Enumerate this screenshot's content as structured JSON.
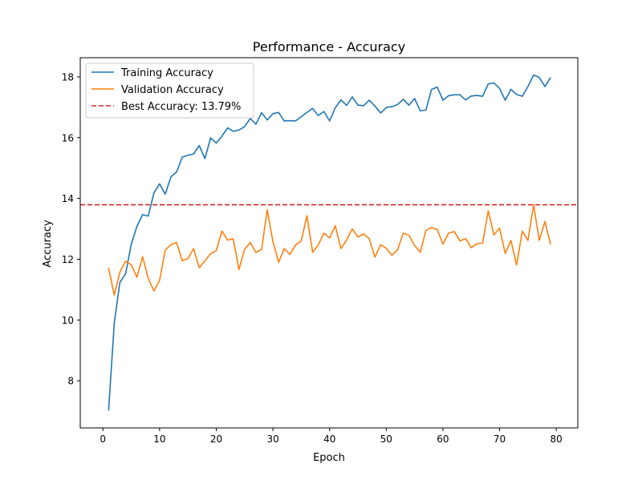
{
  "chart_data": {
    "type": "line",
    "title": "Performance - Accuracy",
    "xlabel": "Epoch",
    "ylabel": "Accuracy",
    "xlim": [
      -4,
      83.8
    ],
    "ylim": [
      6.45,
      18.63
    ],
    "xticks": [
      0,
      10,
      20,
      30,
      40,
      50,
      60,
      70,
      80
    ],
    "yticks": [
      8,
      10,
      12,
      14,
      16,
      18
    ],
    "grid": false,
    "legend_placement": "upper-left",
    "x": [
      1,
      2,
      3,
      4,
      5,
      6,
      7,
      8,
      9,
      10,
      11,
      12,
      13,
      14,
      15,
      16,
      17,
      18,
      19,
      20,
      21,
      22,
      23,
      24,
      25,
      26,
      27,
      28,
      29,
      30,
      31,
      32,
      33,
      34,
      35,
      36,
      37,
      38,
      39,
      40,
      41,
      42,
      43,
      44,
      45,
      46,
      47,
      48,
      49,
      50,
      51,
      52,
      53,
      54,
      55,
      56,
      57,
      58,
      59,
      60,
      61,
      62,
      63,
      64,
      65,
      66,
      67,
      68,
      69,
      70,
      71,
      72,
      73,
      74,
      75,
      76,
      77,
      78,
      79
    ],
    "series": [
      {
        "name": "Training Accuracy",
        "color": "#1f77b4",
        "values": [
          7.02,
          9.9,
          11.24,
          11.52,
          12.49,
          13.08,
          13.47,
          13.42,
          14.18,
          14.48,
          14.14,
          14.71,
          14.87,
          15.36,
          15.42,
          15.46,
          15.74,
          15.31,
          15.99,
          15.82,
          16.05,
          16.32,
          16.21,
          16.25,
          16.36,
          16.63,
          16.44,
          16.82,
          16.58,
          16.79,
          16.83,
          16.55,
          16.56,
          16.55,
          16.69,
          16.83,
          16.96,
          16.73,
          16.86,
          16.55,
          16.98,
          17.24,
          17.06,
          17.34,
          17.07,
          17.05,
          17.23,
          17.04,
          16.81,
          16.99,
          17.02,
          17.09,
          17.26,
          17.07,
          17.29,
          16.88,
          16.91,
          17.59,
          17.66,
          17.23,
          17.38,
          17.41,
          17.41,
          17.24,
          17.37,
          17.39,
          17.36,
          17.77,
          17.8,
          17.62,
          17.23,
          17.59,
          17.42,
          17.36,
          17.68,
          18.06,
          17.98,
          17.68,
          17.98
        ]
      },
      {
        "name": "Validation Accuracy",
        "color": "#ff7f0e",
        "values": [
          11.72,
          10.82,
          11.58,
          11.93,
          11.82,
          11.41,
          12.08,
          11.37,
          10.96,
          11.3,
          12.3,
          12.48,
          12.55,
          11.95,
          12.02,
          12.35,
          11.72,
          11.95,
          12.18,
          12.28,
          12.93,
          12.63,
          12.67,
          11.66,
          12.33,
          12.55,
          12.22,
          12.33,
          13.63,
          12.58,
          11.9,
          12.35,
          12.16,
          12.47,
          12.6,
          13.43,
          12.23,
          12.47,
          12.86,
          12.7,
          13.1,
          12.35,
          12.63,
          13.0,
          12.73,
          12.83,
          12.68,
          12.07,
          12.48,
          12.36,
          12.13,
          12.31,
          12.86,
          12.79,
          12.45,
          12.23,
          12.95,
          13.04,
          12.98,
          12.49,
          12.86,
          12.91,
          12.6,
          12.68,
          12.38,
          12.51,
          12.53,
          13.59,
          12.8,
          13.02,
          12.19,
          12.62,
          11.81,
          12.92,
          12.62,
          13.79,
          12.62,
          13.24,
          12.48
        ]
      }
    ],
    "reference_line": {
      "name": "Best Accuracy: 13.79%",
      "value": 13.79,
      "color": "#d62728",
      "style": "dashed"
    }
  }
}
